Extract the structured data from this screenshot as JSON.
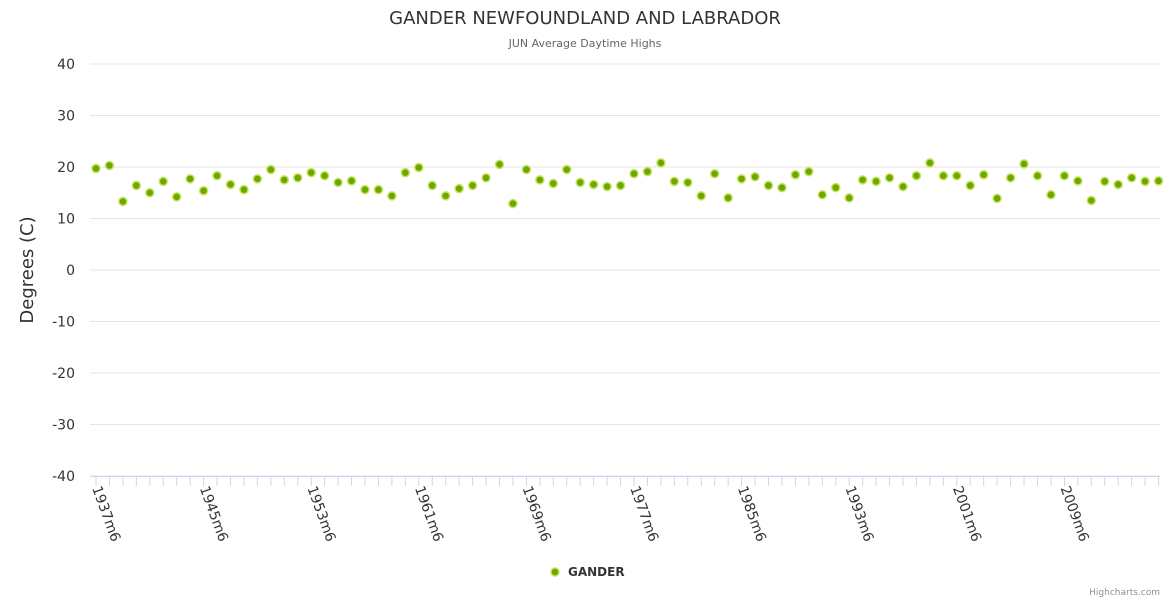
{
  "chart_data": {
    "type": "scatter",
    "title": "GANDER NEWFOUNDLAND AND LABRADOR",
    "subtitle": "JUN Average Daytime Highs",
    "xlabel": "",
    "ylabel": "Degrees (C)",
    "ylim": [
      -40,
      40
    ],
    "yticks": [
      40,
      30,
      20,
      10,
      0,
      -10,
      -20,
      -30,
      -40
    ],
    "xtick_labels": [
      "1937m6",
      "1945m6",
      "1953m6",
      "1961m6",
      "1969m6",
      "1977m6",
      "1985m6",
      "1993m6",
      "2001m6",
      "2009m6"
    ],
    "x_start_year": 1937,
    "x_label_suffix": "m6",
    "grid": true,
    "legend_position": "bottom-center",
    "series": [
      {
        "name": "GANDER",
        "color": "#6aa800",
        "values": [
          19.7,
          20.3,
          13.3,
          16.4,
          15.0,
          17.2,
          14.2,
          17.7,
          15.4,
          18.3,
          16.6,
          15.6,
          17.7,
          19.5,
          17.5,
          17.9,
          18.9,
          18.3,
          17.0,
          17.3,
          15.6,
          15.6,
          14.4,
          18.9,
          19.9,
          16.4,
          14.4,
          15.8,
          16.4,
          17.9,
          20.5,
          12.9,
          19.5,
          17.5,
          16.8,
          19.5,
          17.0,
          16.6,
          16.2,
          16.4,
          18.7,
          19.1,
          20.8,
          17.2,
          17.0,
          14.4,
          18.7,
          14.0,
          17.7,
          18.1,
          16.4,
          16.0,
          18.5,
          19.1,
          14.6,
          16.0,
          14.0,
          17.5,
          17.2,
          17.9,
          16.2,
          18.3,
          20.8,
          18.3,
          18.3,
          16.4,
          18.5,
          13.9,
          17.9,
          20.6,
          18.3,
          14.6,
          18.3,
          17.3,
          13.5,
          17.2,
          16.6,
          17.9,
          17.2,
          17.3
        ]
      }
    ],
    "credits": "Highcharts.com"
  }
}
